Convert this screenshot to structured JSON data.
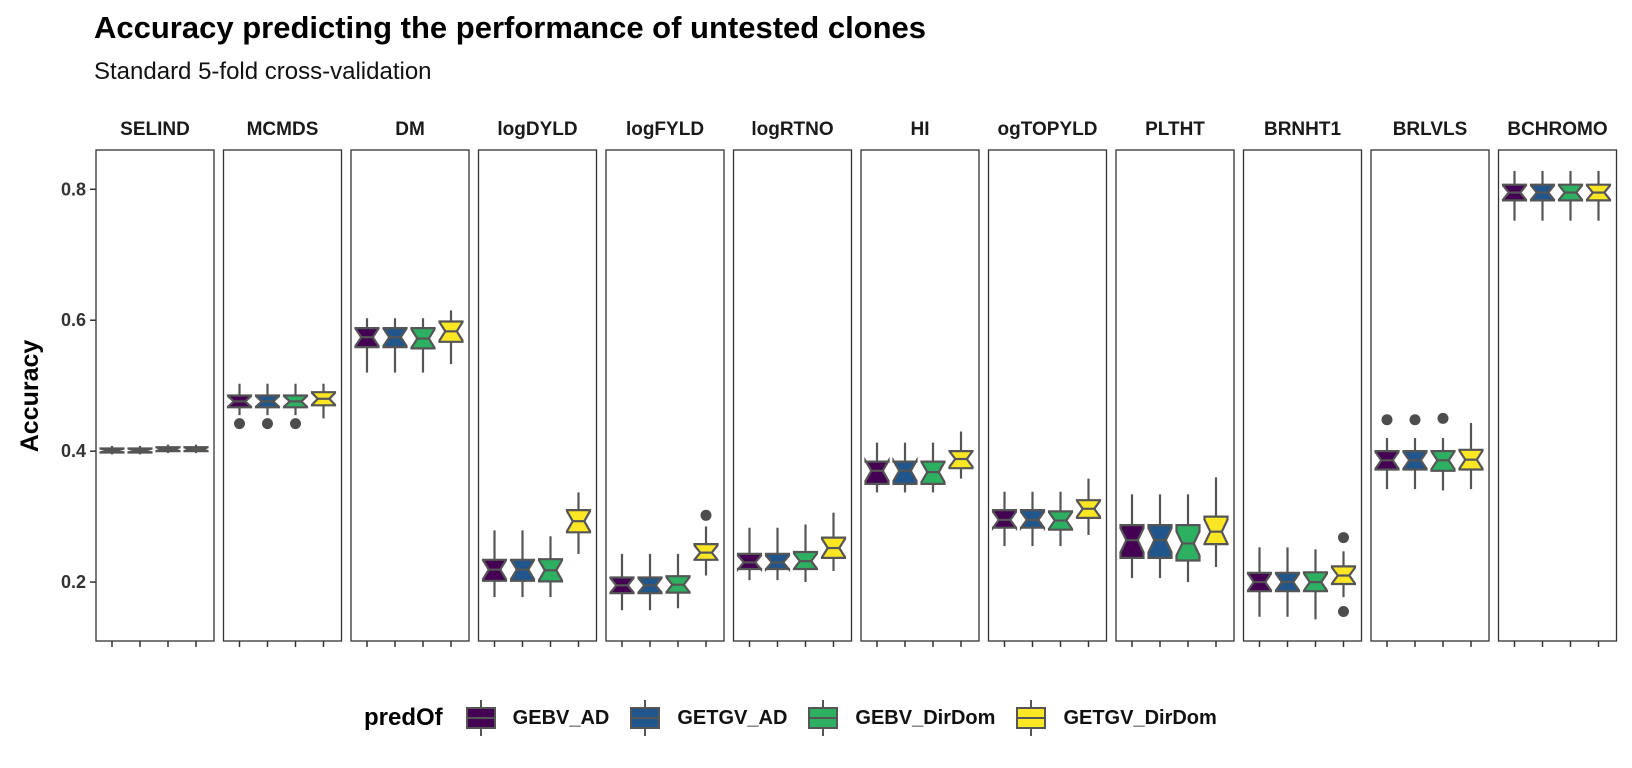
{
  "title": "Accuracy predicting the performance of untested clones",
  "subtitle": "Standard 5-fold cross-validation",
  "chart_data": {
    "type": "boxplot",
    "facet_by": "trait",
    "facets": [
      "SELIND",
      "MCMDS",
      "DM",
      "logDYLD",
      "logFYLD",
      "logRTNO",
      "HI",
      "ogTOPYLD",
      "PLTHT",
      "BRNHT1",
      "BRLVLS",
      "BCHROMO"
    ],
    "ylabel": "Accuracy",
    "xlabel": "",
    "ylim": [
      0.11,
      0.86
    ],
    "yticks": [
      0.2,
      0.4,
      0.6,
      0.8
    ],
    "grid": false,
    "legend": {
      "title": "predOf",
      "position": "bottom",
      "entries": [
        "GEBV_AD",
        "GETGV_AD",
        "GEBV_DirDom",
        "GETGV_DirDom"
      ]
    },
    "series": [
      {
        "name": "GEBV_AD",
        "color": "#440154",
        "boxes": [
          {
            "min": 0.395,
            "q1": 0.398,
            "median": 0.401,
            "q3": 0.404,
            "max": 0.408,
            "outliers": []
          },
          {
            "min": 0.455,
            "q1": 0.467,
            "median": 0.476,
            "q3": 0.485,
            "max": 0.503,
            "outliers": [
              0.442
            ]
          },
          {
            "min": 0.52,
            "q1": 0.559,
            "median": 0.574,
            "q3": 0.588,
            "max": 0.603,
            "outliers": []
          },
          {
            "min": 0.177,
            "q1": 0.202,
            "median": 0.219,
            "q3": 0.234,
            "max": 0.279,
            "outliers": []
          },
          {
            "min": 0.157,
            "q1": 0.183,
            "median": 0.195,
            "q3": 0.207,
            "max": 0.243,
            "outliers": []
          },
          {
            "min": 0.203,
            "q1": 0.22,
            "median": 0.23,
            "q3": 0.243,
            "max": 0.283,
            "outliers": []
          },
          {
            "min": 0.337,
            "q1": 0.35,
            "median": 0.37,
            "q3": 0.384,
            "max": 0.413,
            "outliers": []
          },
          {
            "min": 0.255,
            "q1": 0.283,
            "median": 0.295,
            "q3": 0.31,
            "max": 0.338,
            "outliers": []
          },
          {
            "min": 0.206,
            "q1": 0.237,
            "median": 0.264,
            "q3": 0.287,
            "max": 0.334,
            "outliers": []
          },
          {
            "min": 0.147,
            "q1": 0.186,
            "median": 0.2,
            "q3": 0.214,
            "max": 0.253,
            "outliers": []
          },
          {
            "min": 0.342,
            "q1": 0.372,
            "median": 0.386,
            "q3": 0.4,
            "max": 0.42,
            "outliers": [
              0.448
            ]
          },
          {
            "min": 0.752,
            "q1": 0.783,
            "median": 0.795,
            "q3": 0.807,
            "max": 0.828,
            "outliers": []
          }
        ]
      },
      {
        "name": "GETGV_AD",
        "color": "#21568d",
        "boxes": [
          {
            "min": 0.395,
            "q1": 0.398,
            "median": 0.401,
            "q3": 0.404,
            "max": 0.408,
            "outliers": []
          },
          {
            "min": 0.455,
            "q1": 0.467,
            "median": 0.476,
            "q3": 0.485,
            "max": 0.503,
            "outliers": [
              0.442
            ]
          },
          {
            "min": 0.52,
            "q1": 0.559,
            "median": 0.574,
            "q3": 0.588,
            "max": 0.603,
            "outliers": []
          },
          {
            "min": 0.177,
            "q1": 0.202,
            "median": 0.219,
            "q3": 0.234,
            "max": 0.279,
            "outliers": []
          },
          {
            "min": 0.157,
            "q1": 0.183,
            "median": 0.195,
            "q3": 0.207,
            "max": 0.243,
            "outliers": []
          },
          {
            "min": 0.203,
            "q1": 0.22,
            "median": 0.23,
            "q3": 0.243,
            "max": 0.283,
            "outliers": []
          },
          {
            "min": 0.337,
            "q1": 0.35,
            "median": 0.37,
            "q3": 0.384,
            "max": 0.413,
            "outliers": []
          },
          {
            "min": 0.255,
            "q1": 0.283,
            "median": 0.295,
            "q3": 0.31,
            "max": 0.338,
            "outliers": []
          },
          {
            "min": 0.206,
            "q1": 0.237,
            "median": 0.264,
            "q3": 0.287,
            "max": 0.334,
            "outliers": []
          },
          {
            "min": 0.147,
            "q1": 0.186,
            "median": 0.2,
            "q3": 0.214,
            "max": 0.253,
            "outliers": []
          },
          {
            "min": 0.342,
            "q1": 0.372,
            "median": 0.386,
            "q3": 0.4,
            "max": 0.42,
            "outliers": [
              0.448
            ]
          },
          {
            "min": 0.752,
            "q1": 0.783,
            "median": 0.795,
            "q3": 0.807,
            "max": 0.828,
            "outliers": []
          }
        ]
      },
      {
        "name": "GEBV_DirDom",
        "color": "#2eb062",
        "boxes": [
          {
            "min": 0.397,
            "q1": 0.4,
            "median": 0.403,
            "q3": 0.406,
            "max": 0.41,
            "outliers": []
          },
          {
            "min": 0.455,
            "q1": 0.467,
            "median": 0.476,
            "q3": 0.485,
            "max": 0.503,
            "outliers": [
              0.442
            ]
          },
          {
            "min": 0.52,
            "q1": 0.557,
            "median": 0.572,
            "q3": 0.588,
            "max": 0.603,
            "outliers": []
          },
          {
            "min": 0.177,
            "q1": 0.201,
            "median": 0.218,
            "q3": 0.235,
            "max": 0.27,
            "outliers": []
          },
          {
            "min": 0.16,
            "q1": 0.184,
            "median": 0.196,
            "q3": 0.209,
            "max": 0.243,
            "outliers": []
          },
          {
            "min": 0.2,
            "q1": 0.22,
            "median": 0.232,
            "q3": 0.246,
            "max": 0.288,
            "outliers": []
          },
          {
            "min": 0.337,
            "q1": 0.35,
            "median": 0.368,
            "q3": 0.384,
            "max": 0.413,
            "outliers": []
          },
          {
            "min": 0.255,
            "q1": 0.28,
            "median": 0.294,
            "q3": 0.308,
            "max": 0.338,
            "outliers": []
          },
          {
            "min": 0.2,
            "q1": 0.233,
            "median": 0.259,
            "q3": 0.287,
            "max": 0.334,
            "outliers": []
          },
          {
            "min": 0.143,
            "q1": 0.186,
            "median": 0.2,
            "q3": 0.215,
            "max": 0.25,
            "outliers": []
          },
          {
            "min": 0.34,
            "q1": 0.37,
            "median": 0.386,
            "q3": 0.4,
            "max": 0.42,
            "outliers": [
              0.45
            ]
          },
          {
            "min": 0.752,
            "q1": 0.783,
            "median": 0.795,
            "q3": 0.807,
            "max": 0.828,
            "outliers": []
          }
        ]
      },
      {
        "name": "GETGV_DirDom",
        "color": "#fde725",
        "boxes": [
          {
            "min": 0.397,
            "q1": 0.4,
            "median": 0.403,
            "q3": 0.406,
            "max": 0.41,
            "outliers": []
          },
          {
            "min": 0.45,
            "q1": 0.47,
            "median": 0.48,
            "q3": 0.49,
            "max": 0.503,
            "outliers": []
          },
          {
            "min": 0.533,
            "q1": 0.567,
            "median": 0.583,
            "q3": 0.598,
            "max": 0.615,
            "outliers": []
          },
          {
            "min": 0.243,
            "q1": 0.276,
            "median": 0.293,
            "q3": 0.31,
            "max": 0.337,
            "outliers": []
          },
          {
            "min": 0.21,
            "q1": 0.234,
            "median": 0.245,
            "q3": 0.258,
            "max": 0.285,
            "outliers": [
              0.302
            ]
          },
          {
            "min": 0.217,
            "q1": 0.237,
            "median": 0.252,
            "q3": 0.268,
            "max": 0.306,
            "outliers": []
          },
          {
            "min": 0.358,
            "q1": 0.374,
            "median": 0.388,
            "q3": 0.4,
            "max": 0.43,
            "outliers": []
          },
          {
            "min": 0.272,
            "q1": 0.298,
            "median": 0.312,
            "q3": 0.325,
            "max": 0.358,
            "outliers": []
          },
          {
            "min": 0.223,
            "q1": 0.258,
            "median": 0.277,
            "q3": 0.3,
            "max": 0.36,
            "outliers": []
          },
          {
            "min": 0.177,
            "q1": 0.197,
            "median": 0.21,
            "q3": 0.224,
            "max": 0.247,
            "outliers": [
              0.268,
              0.155
            ]
          },
          {
            "min": 0.342,
            "q1": 0.372,
            "median": 0.387,
            "q3": 0.402,
            "max": 0.443,
            "outliers": []
          },
          {
            "min": 0.752,
            "q1": 0.783,
            "median": 0.795,
            "q3": 0.807,
            "max": 0.828,
            "outliers": []
          }
        ]
      }
    ]
  }
}
